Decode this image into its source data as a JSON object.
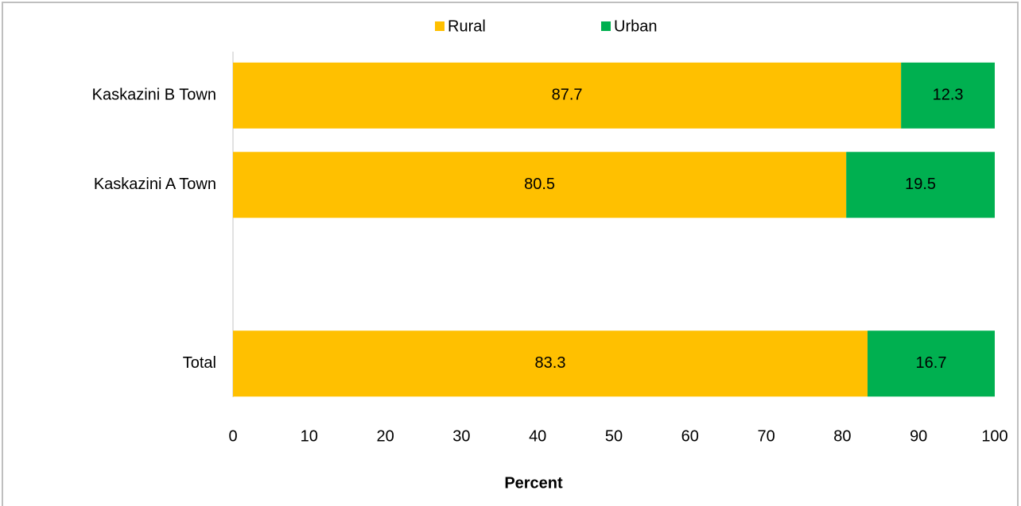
{
  "chart_data": {
    "type": "stacked-bar-horizontal",
    "categories": [
      "Kaskazini B Town",
      "Kaskazini A Town",
      null,
      "Total"
    ],
    "series": [
      {
        "name": "Rural",
        "color": "#FFC000",
        "values": [
          87.7,
          80.5,
          null,
          83.3
        ]
      },
      {
        "name": "Urban",
        "color": "#00B050",
        "values": [
          12.3,
          19.5,
          null,
          16.7
        ]
      }
    ],
    "xlabel": "Percent",
    "xlim": [
      0,
      100
    ],
    "xticks": [
      0,
      10,
      20,
      30,
      40,
      50,
      60,
      70,
      80,
      90,
      100
    ],
    "legend": "top",
    "grid": false
  }
}
